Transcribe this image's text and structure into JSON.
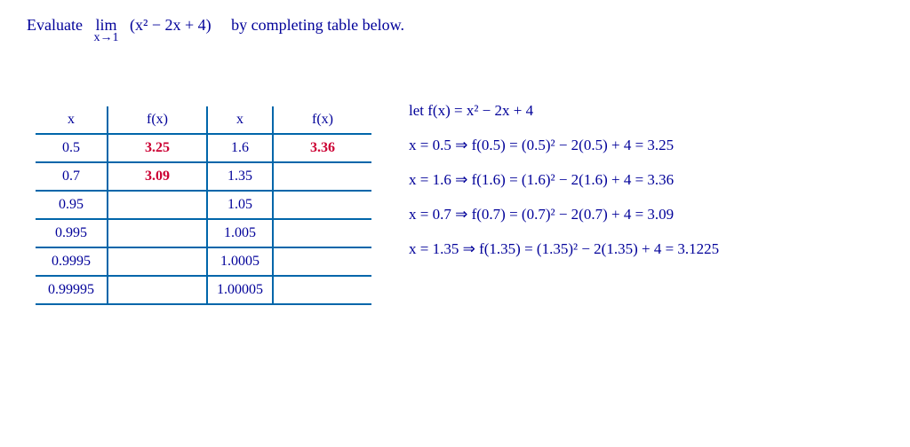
{
  "problem": {
    "word_evaluate": "Evaluate",
    "lim": "lim",
    "lim_sub": "x→1",
    "expr": "(x² − 2x + 4)",
    "rest": "by completing table below."
  },
  "table": {
    "headers": [
      "x",
      "f(x)",
      "x",
      "f(x)"
    ],
    "rows": [
      {
        "x1": "0.5",
        "f1": "3.25",
        "x2": "1.6",
        "f2": "3.36",
        "f1_red": true,
        "f2_red": true
      },
      {
        "x1": "0.7",
        "f1": "3.09",
        "x2": "1.35",
        "f2": "",
        "f1_red": true,
        "f2_red": false
      },
      {
        "x1": "0.95",
        "f1": "",
        "x2": "1.05",
        "f2": ""
      },
      {
        "x1": "0.995",
        "f1": "",
        "x2": "1.005",
        "f2": ""
      },
      {
        "x1": "0.9995",
        "f1": "",
        "x2": "1.0005",
        "f2": ""
      },
      {
        "x1": "0.99995",
        "f1": "",
        "x2": "1.00005",
        "f2": ""
      }
    ]
  },
  "work": {
    "let_line": "let f(x) = x² − 2x + 4",
    "lines": [
      "x = 0.5   ⇒   f(0.5) = (0.5)² − 2(0.5) + 4  = 3.25",
      "x = 1.6   ⇒   f(1.6) = (1.6)² − 2(1.6) + 4  = 3.36",
      "x = 0.7   ⇒   f(0.7) = (0.7)² − 2(0.7) + 4  = 3.09",
      "x = 1.35  ⇒   f(1.35) = (1.35)² − 2(1.35) + 4  = 3.1225"
    ]
  },
  "colors": {
    "ink": "#000099",
    "red": "#cc0033",
    "table_border": "#0066aa",
    "background": "#ffffff"
  }
}
